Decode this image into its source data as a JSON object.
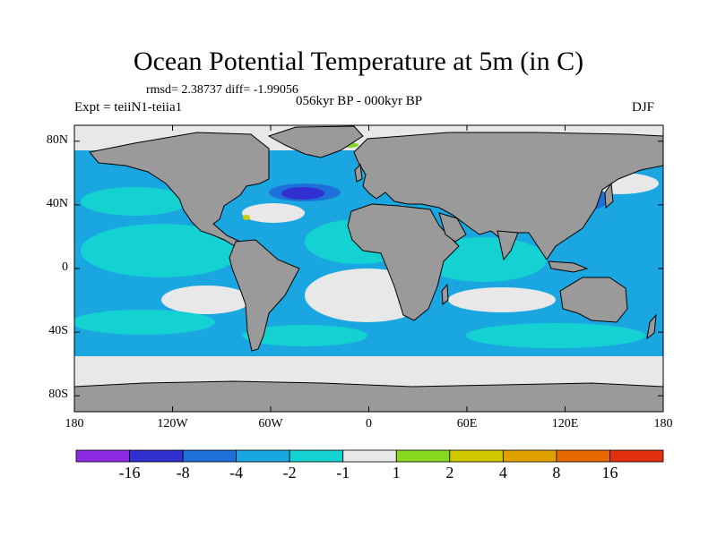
{
  "title": "Ocean Potential Temperature at 5m (in C)",
  "stats": "rmsd= 2.38737 diff= -1.99056",
  "left_subtitle": "Expt = teiiN1-teiia1",
  "center_subtitle": "056kyr BP - 000kyr BP",
  "right_subtitle": "DJF",
  "y_ticks": [
    {
      "label": "80N",
      "lat": 80
    },
    {
      "label": "40N",
      "lat": 40
    },
    {
      "label": "0",
      "lat": 0
    },
    {
      "label": "40S",
      "lat": -40
    },
    {
      "label": "80S",
      "lat": -80
    }
  ],
  "x_ticks": [
    {
      "label": "180",
      "lon": -180
    },
    {
      "label": "120W",
      "lon": -120
    },
    {
      "label": "60W",
      "lon": -60
    },
    {
      "label": "0",
      "lon": 0
    },
    {
      "label": "60E",
      "lon": 60
    },
    {
      "label": "120E",
      "lon": 120
    },
    {
      "label": "180",
      "lon": 180
    }
  ],
  "colorbar": {
    "labels": [
      "-16",
      "-8",
      "-4",
      "-2",
      "-1",
      "1",
      "2",
      "4",
      "8",
      "16"
    ],
    "colors": [
      "#8a2be2",
      "#3030d0",
      "#1f6fd8",
      "#1aa6e0",
      "#14d2d2",
      "#e8e8e8",
      "#88d820",
      "#d2c800",
      "#e0a000",
      "#e86800",
      "#e03010"
    ]
  },
  "colors": {
    "land": "#9a9a9a",
    "ocean_default": "#1aa6e0"
  }
}
